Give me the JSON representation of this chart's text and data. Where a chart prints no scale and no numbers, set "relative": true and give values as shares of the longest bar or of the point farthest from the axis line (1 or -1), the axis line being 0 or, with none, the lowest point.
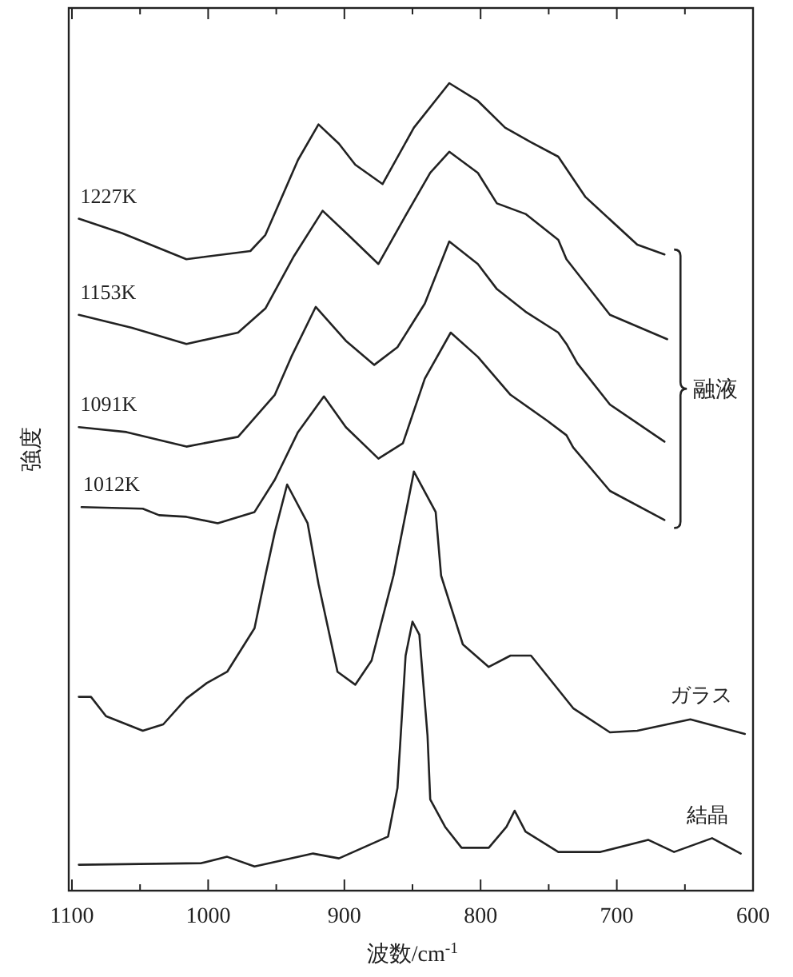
{
  "chart_data": {
    "type": "line",
    "relative": true,
    "xlabel": "波数/cm$^{-1}$",
    "ylabel": "強度",
    "xlim": [
      1100,
      600
    ],
    "xticks": [
      1100,
      {
        "value": 1050,
        "label": null
      },
      1000,
      {
        "value": 950,
        "label": null
      },
      900,
      {
        "value": 850,
        "label": null
      },
      800,
      {
        "value": 750,
        "label": null
      },
      700,
      {
        "value": 650,
        "label": null
      },
      600
    ],
    "marker": "none",
    "line_style": "solid",
    "annotations": [
      "融液"
    ],
    "series": [
      {
        "name": "1227K",
        "color": "#222222",
        "x": [
          1095,
          1063,
          1016,
          969,
          958,
          934,
          919,
          904,
          892,
          872,
          849,
          823,
          802,
          782,
          763,
          743,
          723,
          685,
          665
        ],
        "values": [
          0.832,
          0.814,
          0.782,
          0.792,
          0.812,
          0.905,
          0.949,
          0.925,
          0.899,
          0.875,
          0.945,
          1,
          0.978,
          0.945,
          0.927,
          0.909,
          0.859,
          0.8,
          0.788
        ]
      },
      {
        "name": "1153K",
        "color": "#222222",
        "x": [
          1095,
          1056,
          1016,
          978,
          958,
          937,
          916,
          896,
          875,
          855,
          837,
          823,
          802,
          788,
          767,
          743,
          737,
          705,
          663
        ],
        "values": [
          0.713,
          0.697,
          0.677,
          0.691,
          0.721,
          0.786,
          0.842,
          0.81,
          0.776,
          0.836,
          0.889,
          0.915,
          0.889,
          0.851,
          0.838,
          0.806,
          0.782,
          0.713,
          0.683
        ]
      },
      {
        "name": "1091K",
        "color": "#222222",
        "x": [
          1095,
          1060,
          1016,
          978,
          951,
          939,
          921,
          899,
          878,
          861,
          841,
          823,
          802,
          788,
          767,
          743,
          737,
          729,
          705,
          665
        ],
        "values": [
          0.574,
          0.568,
          0.55,
          0.562,
          0.614,
          0.661,
          0.723,
          0.681,
          0.651,
          0.673,
          0.727,
          0.804,
          0.776,
          0.745,
          0.717,
          0.691,
          0.677,
          0.653,
          0.602,
          0.556
        ]
      },
      {
        "name": "1012K",
        "color": "#222222",
        "x": [
          1093,
          1048,
          1036,
          1016,
          993,
          966,
          951,
          934,
          915,
          899,
          875,
          857,
          841,
          822,
          802,
          778,
          751,
          737,
          732,
          705,
          665
        ],
        "values": [
          0.475,
          0.473,
          0.465,
          0.463,
          0.455,
          0.469,
          0.509,
          0.568,
          0.612,
          0.574,
          0.535,
          0.554,
          0.634,
          0.691,
          0.661,
          0.614,
          0.582,
          0.564,
          0.549,
          0.495,
          0.459
        ]
      },
      {
        "name": "ガラス",
        "color": "#222222",
        "x": [
          1095,
          1086,
          1075,
          1048,
          1033,
          1016,
          1001,
          986,
          966,
          958,
          951,
          942,
          927,
          919,
          905,
          892,
          880,
          864,
          849,
          833,
          829,
          813,
          794,
          778,
          763,
          732,
          705,
          685,
          646,
          606
        ],
        "values": [
          0.24,
          0.24,
          0.216,
          0.198,
          0.206,
          0.238,
          0.257,
          0.271,
          0.325,
          0.39,
          0.444,
          0.503,
          0.455,
          0.38,
          0.271,
          0.255,
          0.285,
          0.39,
          0.519,
          0.469,
          0.39,
          0.305,
          0.277,
          0.291,
          0.291,
          0.226,
          0.196,
          0.198,
          0.212,
          0.194
        ]
      },
      {
        "name": "結晶",
        "color": "#222222",
        "x": [
          1095,
          1005,
          986,
          966,
          923,
          904,
          868,
          861,
          855,
          850,
          845,
          839,
          837,
          826,
          814,
          794,
          781,
          775,
          767,
          743,
          712,
          677,
          658,
          630,
          609
        ],
        "values": [
          0.032,
          0.034,
          0.042,
          0.03,
          0.046,
          0.04,
          0.067,
          0.127,
          0.291,
          0.333,
          0.317,
          0.192,
          0.113,
          0.079,
          0.053,
          0.053,
          0.079,
          0.099,
          0.073,
          0.048,
          0.048,
          0.063,
          0.048,
          0.065,
          0.046
        ]
      }
    ]
  }
}
